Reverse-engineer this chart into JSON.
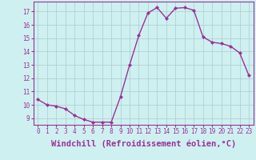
{
  "x": [
    0,
    1,
    2,
    3,
    4,
    5,
    6,
    7,
    8,
    9,
    10,
    11,
    12,
    13,
    14,
    15,
    16,
    17,
    18,
    19,
    20,
    21,
    22,
    23
  ],
  "y": [
    10.4,
    10.0,
    9.9,
    9.7,
    9.2,
    8.9,
    8.7,
    8.7,
    8.7,
    10.6,
    13.0,
    15.2,
    16.9,
    17.3,
    16.5,
    17.25,
    17.3,
    17.1,
    15.1,
    14.7,
    14.6,
    14.4,
    13.9,
    12.2
  ],
  "line_color": "#993399",
  "marker": "D",
  "marker_size": 2.0,
  "bg_color": "#cff0f0",
  "grid_color": "#aacccc",
  "xlabel": "Windchill (Refroidissement éolien,°C)",
  "xlabel_fontsize": 7.5,
  "xlim": [
    -0.5,
    23.5
  ],
  "ylim": [
    8.5,
    17.75
  ],
  "yticks": [
    9,
    10,
    11,
    12,
    13,
    14,
    15,
    16,
    17
  ],
  "xticks": [
    0,
    1,
    2,
    3,
    4,
    5,
    6,
    7,
    8,
    9,
    10,
    11,
    12,
    13,
    14,
    15,
    16,
    17,
    18,
    19,
    20,
    21,
    22,
    23
  ],
  "tick_fontsize": 5.5,
  "axis_color": "#993399",
  "spine_color": "#993399",
  "linewidth": 1.0
}
